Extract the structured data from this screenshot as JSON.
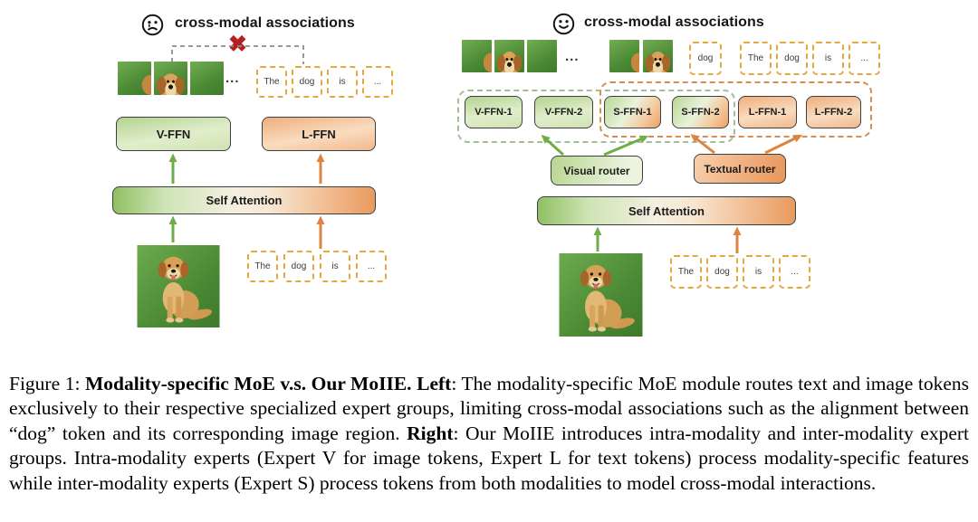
{
  "left": {
    "mood": "sad",
    "title": "cross-modal associations",
    "blocked_mark": "✖",
    "patches": [
      "edge",
      "face",
      "grass"
    ],
    "patches_ellipsis": "...",
    "top_tokens": [
      "The",
      "dog",
      "is",
      "..."
    ],
    "experts": [
      {
        "label": "V-FFN",
        "type": "visual"
      },
      {
        "label": "L-FFN",
        "type": "textual"
      }
    ],
    "attention_label": "Self Attention",
    "bottom_tokens": [
      "The",
      "dog",
      "is",
      "..."
    ]
  },
  "right": {
    "mood": "happy",
    "title": "cross-modal associations",
    "patch_group_v": [
      "edge",
      "face",
      "grass"
    ],
    "patches_ellipsis": "...",
    "patch_group_s": [
      "edge",
      "face"
    ],
    "image_group_token": "dog",
    "top_tokens": [
      "The",
      "dog",
      "is",
      "..."
    ],
    "experts": [
      {
        "label": "V-FFN-1",
        "type": "visual"
      },
      {
        "label": "V-FFN-2",
        "type": "visual"
      },
      {
        "label": "S-FFN-1",
        "type": "shared"
      },
      {
        "label": "S-FFN-2",
        "type": "shared"
      },
      {
        "label": "L-FFN-1",
        "type": "textual"
      },
      {
        "label": "L-FFN-2",
        "type": "textual"
      }
    ],
    "routers": [
      {
        "label": "Visual router",
        "type": "visual"
      },
      {
        "label": "Textual router",
        "type": "textual"
      }
    ],
    "attention_label": "Self Attention",
    "bottom_tokens": [
      "The",
      "dog",
      "is",
      "..."
    ]
  },
  "caption": {
    "parts": [
      {
        "text": "Figure 1: ",
        "bold": false
      },
      {
        "text": "Modality-specific MoE v.s. Our MoIIE. Left",
        "bold": true
      },
      {
        "text": ": The modality-specific MoE module routes text and image tokens exclusively to their respective specialized expert groups, limiting cross-modal associations such as the alignment between “dog” token and its corresponding image region. ",
        "bold": false
      },
      {
        "text": "Right",
        "bold": true
      },
      {
        "text": ": Our MoIIE introduces intra-modality and inter-modality expert groups. Intra-modality experts (Expert V for image tokens, Expert L for text tokens) process modality-specific features while inter-modality experts (Expert S) process tokens from both modalities to model cross-modal interactions.",
        "bold": false
      }
    ]
  },
  "colors": {
    "visual_green": "#6fae47",
    "textual_orange": "#dd8440",
    "shared_gradient": "green-to-orange",
    "token_border": "#e4a83c",
    "blocked_red": "#b51f1f",
    "group_v_dash": "#a3bd97",
    "group_t_dash": "#d78d52"
  }
}
